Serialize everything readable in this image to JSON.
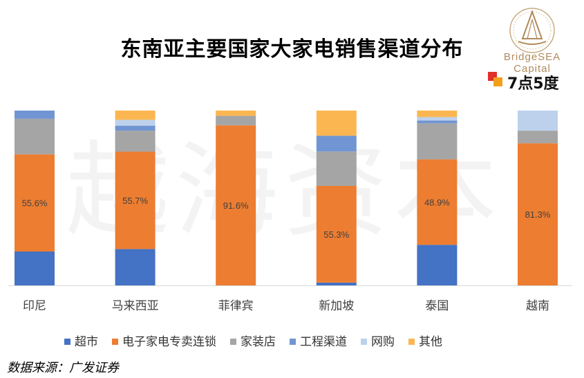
{
  "title": "东南亚主要国家大家电销售渠道分布",
  "logo": {
    "name": "BridgeSEA Capital",
    "secondary": "7点5度"
  },
  "watermark": "越海资本",
  "source": "数据来源：广发证券",
  "chart_data": {
    "type": "bar",
    "stacked": true,
    "percent": true,
    "title": "东南亚主要国家大家电销售渠道分布",
    "xlabel": "",
    "ylabel": "",
    "ylim": [
      0,
      100
    ],
    "grid": false,
    "legend_position": "bottom",
    "categories": [
      "印尼",
      "马来西亚",
      "菲律宾",
      "新加坡",
      "泰国",
      "越南"
    ],
    "series": [
      {
        "name": "超市",
        "color": "#4472c4",
        "values": [
          19.4,
          20.8,
          0.0,
          1.6,
          23.2,
          0.0
        ]
      },
      {
        "name": "电子家电专卖连锁",
        "color": "#ed7d31",
        "values": [
          55.6,
          55.7,
          91.6,
          55.3,
          48.9,
          81.3
        ]
      },
      {
        "name": "家装店",
        "color": "#a5a5a5",
        "values": [
          20.3,
          12.0,
          5.4,
          19.7,
          20.6,
          7.2
        ]
      },
      {
        "name": "工程渠道",
        "color": "#7195d2",
        "values": [
          4.7,
          2.8,
          0.0,
          9.0,
          1.6,
          0.0
        ]
      },
      {
        "name": "网购",
        "color": "#bdd1ec",
        "values": [
          0.0,
          3.4,
          0.0,
          0.0,
          2.0,
          11.5
        ]
      },
      {
        "name": "其他",
        "color": "#fbb651",
        "values": [
          0.0,
          5.3,
          3.0,
          14.4,
          3.7,
          0.0
        ]
      }
    ],
    "data_labels": {
      "series": "电子家电专卖连锁",
      "texts": [
        "55.6%",
        "55.7%",
        "91.6%",
        "55.3%",
        "48.9%",
        "81.3%"
      ]
    }
  }
}
